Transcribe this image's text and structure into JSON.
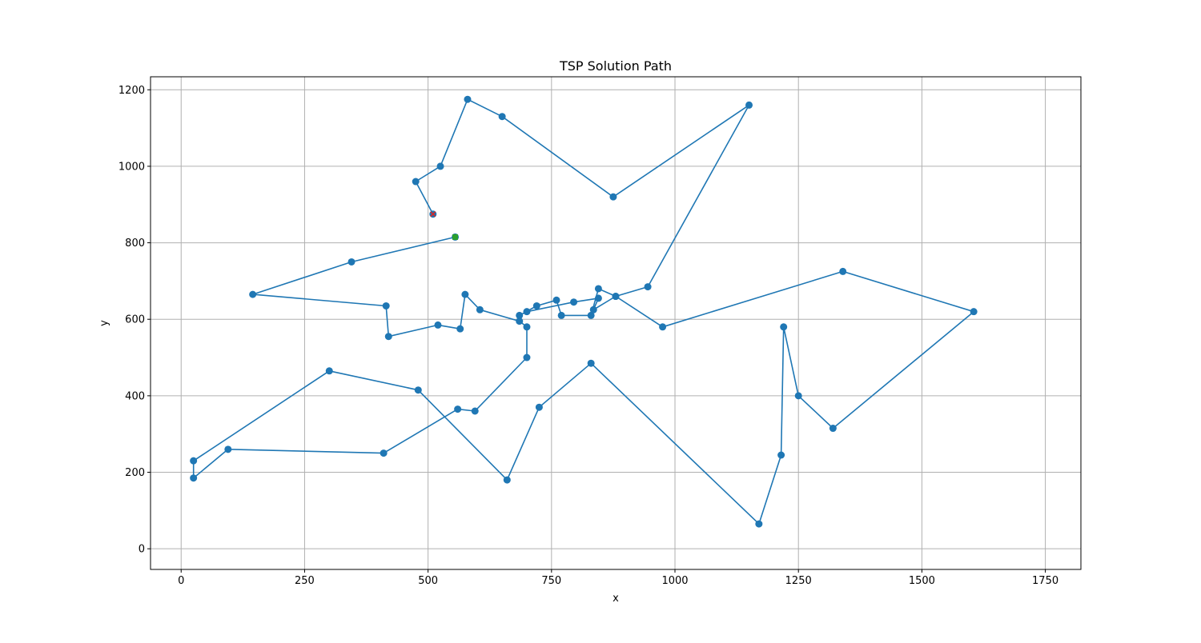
{
  "chart_data": {
    "type": "line",
    "title": "TSP Solution Path",
    "xlabel": "x",
    "ylabel": "y",
    "xlim": [
      -62,
      1822
    ],
    "ylim": [
      -54,
      1234
    ],
    "xticks": [
      0,
      250,
      500,
      750,
      1000,
      1250,
      1500,
      1750
    ],
    "yticks": [
      0,
      200,
      400,
      600,
      800,
      1000,
      1200
    ],
    "grid": true,
    "line_color": "#1f77b4",
    "start_color": "#2ca02c",
    "end_color": "#d62728",
    "start_point": [
      555,
      815
    ],
    "end_point": [
      510,
      875
    ],
    "series": [
      {
        "x": [
          555,
          345,
          145,
          415,
          420,
          520,
          565,
          575,
          605,
          685,
          700,
          700,
          595,
          560,
          410,
          95,
          25,
          25,
          300,
          480,
          660,
          725,
          830,
          1170,
          1215,
          1220,
          1250,
          1320,
          1605,
          1340,
          975,
          880,
          845,
          830,
          770,
          760,
          720,
          685,
          700,
          795,
          845,
          835,
          880,
          945,
          1150,
          875,
          650,
          580,
          525,
          475,
          510
        ],
        "y": [
          815,
          750,
          665,
          635,
          555,
          585,
          575,
          665,
          625,
          595,
          580,
          500,
          360,
          365,
          250,
          260,
          185,
          230,
          465,
          415,
          180,
          370,
          485,
          65,
          245,
          580,
          400,
          315,
          620,
          725,
          580,
          660,
          680,
          610,
          610,
          650,
          635,
          610,
          620,
          645,
          655,
          625,
          660,
          685,
          1160,
          920,
          1130,
          1175,
          1000,
          960,
          875
        ]
      }
    ]
  }
}
